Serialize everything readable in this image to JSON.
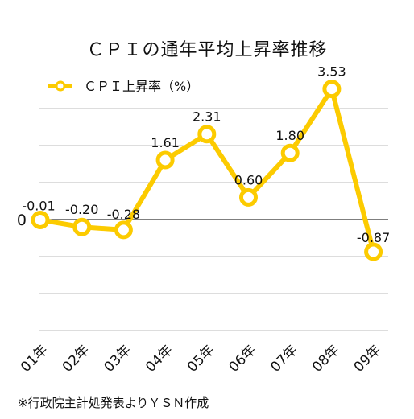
{
  "chart_data": {
    "type": "line",
    "title": "ＣＰＩの通年平均上昇率推移",
    "categories": [
      "01年",
      "02年",
      "03年",
      "04年",
      "05年",
      "06年",
      "07年",
      "08年",
      "09年"
    ],
    "series": [
      {
        "name": "ＣＰＩ上昇率（%）",
        "values": [
          -0.01,
          -0.2,
          -0.28,
          1.61,
          2.31,
          0.6,
          1.8,
          3.53,
          -0.87
        ],
        "labels": [
          "-0.01",
          "-0.20",
          "-0.28",
          "1.61",
          "2.31",
          "0.60",
          "1.80",
          "3.53",
          "-0.87"
        ]
      }
    ],
    "ylim": [
      -3,
      4
    ],
    "ytick_labels": [
      {
        "value": 0,
        "label": "0"
      }
    ],
    "grid": true,
    "legend": "top-left",
    "color": "#fccb00"
  },
  "footnote": "※行政院主計処発表よりＹＳＮ作成"
}
